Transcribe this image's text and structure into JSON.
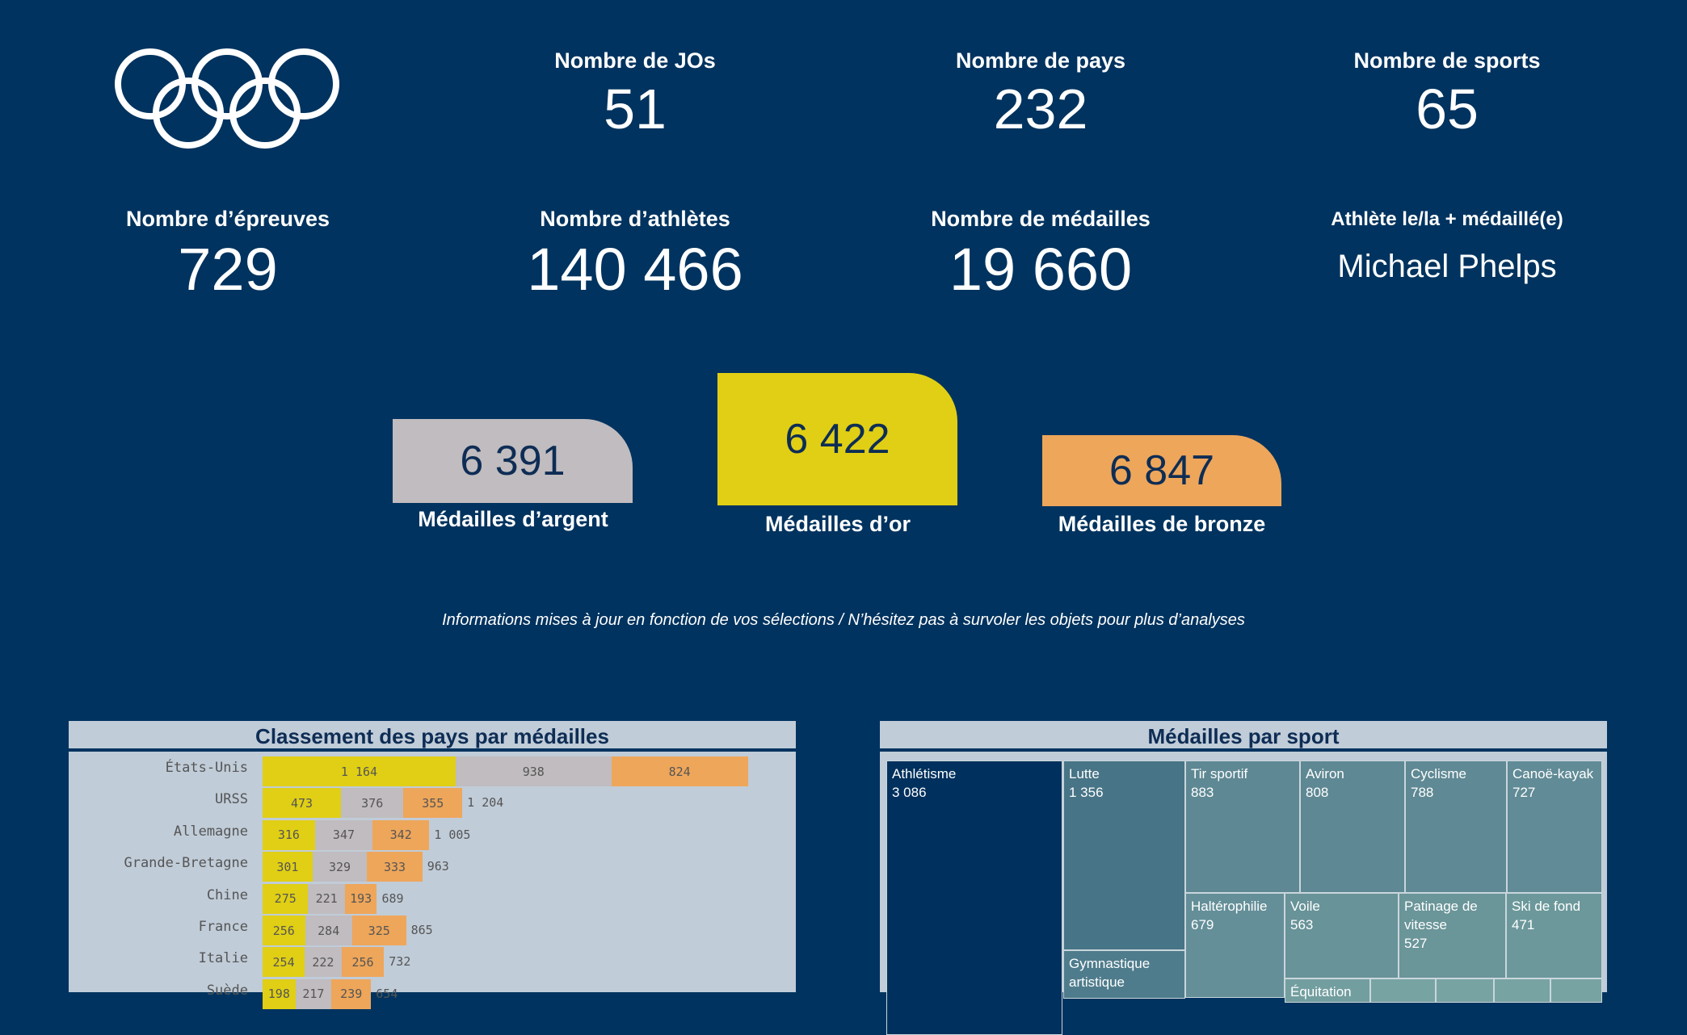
{
  "kpis": {
    "jos": {
      "label": "Nombre de JOs",
      "value": "51"
    },
    "pays": {
      "label": "Nombre de pays",
      "value": "232"
    },
    "sports": {
      "label": "Nombre de sports",
      "value": "65"
    },
    "epreuves": {
      "label": "Nombre d’épreuves",
      "value": "729"
    },
    "athletes": {
      "label": "Nombre d’athlètes",
      "value": "140 466"
    },
    "medailles": {
      "label": "Nombre de médailles",
      "value": "19 660"
    },
    "top_athlete": {
      "label": "Athlète le/la + médaillé(e)",
      "value": "Michael Phelps"
    }
  },
  "medals": {
    "silver": {
      "value": "6 391",
      "label": "Médailles d’argent",
      "color": "#c0bcbf"
    },
    "gold": {
      "value": "6 422",
      "label": "Médailles d’or",
      "color": "#e0cf14"
    },
    "bronze": {
      "value": "6 847",
      "label": "Médailles de bronze",
      "color": "#eea65a"
    }
  },
  "note": "Informations mises à jour en fonction de vos sélections / N’hésitez pas à survoler les objets pour plus d’analyses",
  "chart_data": [
    {
      "type": "bar",
      "orientation": "horizontal-stacked",
      "title": "Classement des pays par médailles",
      "categories": [
        "États-Unis",
        "URSS",
        "Allemagne",
        "Grande-Bretagne",
        "Chine",
        "France",
        "Italie",
        "Suède"
      ],
      "series": [
        {
          "key": "gold",
          "color": "#e0cf14",
          "values": [
            1164,
            473,
            316,
            301,
            275,
            256,
            254,
            198
          ]
        },
        {
          "key": "silver",
          "color": "#c0bcbf",
          "values": [
            938,
            376,
            347,
            329,
            221,
            284,
            222,
            217
          ]
        },
        {
          "key": "bronze",
          "color": "#eea65a",
          "values": [
            824,
            355,
            342,
            333,
            193,
            325,
            256,
            239
          ]
        }
      ],
      "totals": [
        "",
        "1 204",
        "1 005",
        "963",
        "689",
        "865",
        "732",
        "654"
      ],
      "value_labels": [
        [
          "1 164",
          "938",
          "824"
        ],
        [
          "473",
          "376",
          "355"
        ],
        [
          "316",
          "347",
          "342"
        ],
        [
          "301",
          "329",
          "333"
        ],
        [
          "275",
          "221",
          "193"
        ],
        [
          "256",
          "284",
          "325"
        ],
        [
          "254",
          "222",
          "256"
        ],
        [
          "198",
          "217",
          "239"
        ]
      ]
    },
    {
      "type": "treemap",
      "title": "Médailles par sport",
      "items": [
        {
          "name": "Athlétisme",
          "label": "3 086",
          "value": 3086,
          "color": "#00305d"
        },
        {
          "name": "Lutte",
          "label": "1 356",
          "value": 1356,
          "color": "#477486"
        },
        {
          "name": "Tir sportif",
          "label": "883",
          "value": 883,
          "color": "#5e8893"
        },
        {
          "name": "Aviron",
          "label": "808",
          "value": 808,
          "color": "#5e8893"
        },
        {
          "name": "Cyclisme",
          "label": "788",
          "value": 788,
          "color": "#5f8994"
        },
        {
          "name": "Canoë-kayak",
          "label": "727",
          "value": 727,
          "color": "#618b96"
        },
        {
          "name": "Haltérophilie",
          "label": "679",
          "value": 679,
          "color": "#648f98"
        },
        {
          "name": "Voile",
          "label": "563",
          "value": 563,
          "color": "#689398"
        },
        {
          "name": "Patinage de vitesse",
          "label": "527",
          "value": 527,
          "color": "#6a9599"
        },
        {
          "name": "Ski de fond",
          "label": "471",
          "value": 471,
          "color": "#6c989b"
        },
        {
          "name": "Gymnastique artistique",
          "label": "",
          "value": null,
          "color": "#4f7c8c"
        },
        {
          "name": "Équitation",
          "label": "",
          "value": null,
          "color": "#739e9f"
        }
      ]
    }
  ]
}
